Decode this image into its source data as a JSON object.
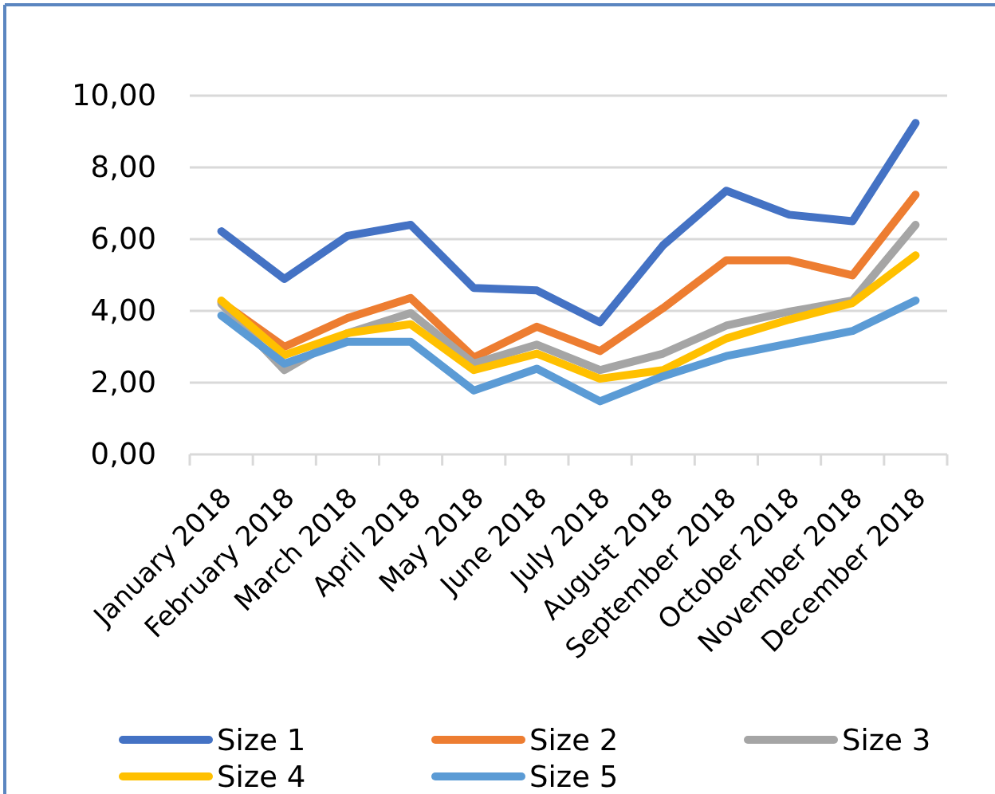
{
  "chart_data": {
    "type": "line",
    "categories": [
      "January 2018",
      "February 2018",
      "March 2018",
      "April 2018",
      "May 2018",
      "June 2018",
      "July 2018",
      "August 2018",
      "September 2018",
      "October 2018",
      "November 2018",
      "December 2018"
    ],
    "series": [
      {
        "name": "Size 1",
        "color": "#4472c4",
        "values": [
          6.22,
          4.89,
          6.09,
          6.4,
          4.64,
          4.57,
          3.68,
          5.83,
          7.35,
          6.68,
          6.5,
          9.24
        ]
      },
      {
        "name": "Size 2",
        "color": "#ed7d31",
        "values": [
          4.25,
          3.0,
          3.8,
          4.36,
          2.7,
          3.56,
          2.88,
          4.08,
          5.41,
          5.41,
          4.99,
          7.24
        ]
      },
      {
        "name": "Size 3",
        "color": "#a5a5a5",
        "values": [
          4.2,
          2.35,
          3.38,
          3.94,
          2.53,
          3.06,
          2.35,
          2.81,
          3.59,
          3.98,
          4.29,
          6.4
        ]
      },
      {
        "name": "Size 4",
        "color": "#ffc000",
        "values": [
          4.29,
          2.77,
          3.38,
          3.63,
          2.35,
          2.81,
          2.11,
          2.35,
          3.23,
          3.76,
          4.22,
          5.55
        ]
      },
      {
        "name": "Size 5",
        "color": "#5b9bd5",
        "values": [
          3.87,
          2.53,
          3.14,
          3.14,
          1.78,
          2.39,
          1.48,
          2.18,
          2.74,
          3.09,
          3.44,
          4.29
        ]
      }
    ],
    "ylim": [
      0,
      10
    ],
    "yticks": [
      {
        "value": 0,
        "label": "0,00"
      },
      {
        "value": 2,
        "label": "2,00"
      },
      {
        "value": 4,
        "label": "4,00"
      },
      {
        "value": 6,
        "label": "6,00"
      },
      {
        "value": 8,
        "label": "8,00"
      },
      {
        "value": 10,
        "label": "10,00"
      }
    ],
    "grid": "y",
    "legend": "bottom",
    "line_style": "solid"
  }
}
